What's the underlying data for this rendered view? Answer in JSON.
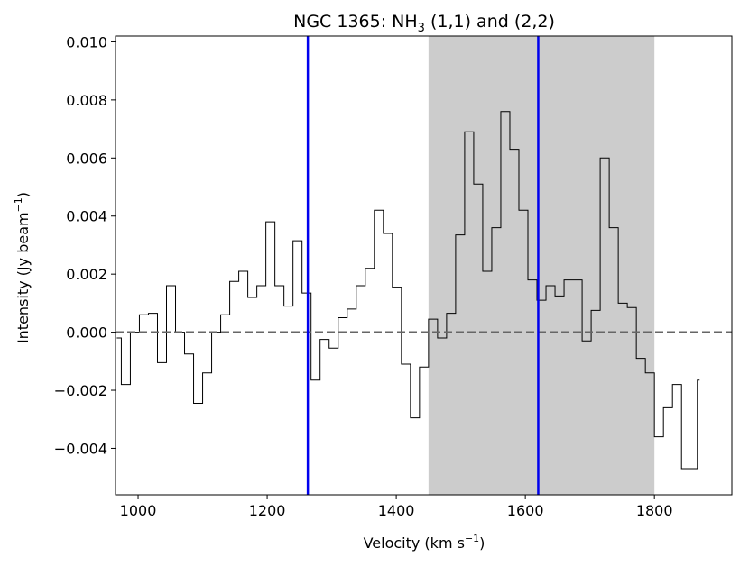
{
  "chart_data": {
    "type": "line",
    "title": "NGC 1365: NH",
    "title_sub": "3",
    "title_rest": " (1,1) and (2,2)",
    "xlabel": "Velocity (km s",
    "xlabel_sup": "−1",
    "xlabel_end": ")",
    "ylabel": "Intensity (Jy beam",
    "ylabel_sup": "−1",
    "ylabel_end": ")",
    "xlim": [
      965,
      1920
    ],
    "ylim": [
      -0.0056,
      0.0102
    ],
    "xticks": [
      {
        "value": 1000,
        "label": "1000"
      },
      {
        "value": 1200,
        "label": "1200"
      },
      {
        "value": 1400,
        "label": "1400"
      },
      {
        "value": 1600,
        "label": "1600"
      },
      {
        "value": 1800,
        "label": "1800"
      }
    ],
    "yticks": [
      {
        "value": -0.004,
        "label": "−0.004"
      },
      {
        "value": -0.002,
        "label": "−0.002"
      },
      {
        "value": 0.0,
        "label": "0.000"
      },
      {
        "value": 0.002,
        "label": "0.002"
      },
      {
        "value": 0.004,
        "label": "0.004"
      },
      {
        "value": 0.006,
        "label": "0.006"
      },
      {
        "value": 0.008,
        "label": "0.008"
      },
      {
        "value": 0.01,
        "label": "0.010"
      }
    ],
    "series": [
      {
        "style": "steps-mid",
        "color": "#000000",
        "points": [
          [
            967,
            -0.0002
          ],
          [
            981,
            -0.0018
          ],
          [
            995,
            0.0
          ],
          [
            1009,
            0.0006
          ],
          [
            1023,
            0.00065
          ],
          [
            1037,
            -0.00105
          ],
          [
            1051,
            0.0016
          ],
          [
            1065,
            0.0
          ],
          [
            1079,
            -0.00075
          ],
          [
            1093,
            -0.00245
          ],
          [
            1107,
            -0.0014
          ],
          [
            1121,
            0.0
          ],
          [
            1135,
            0.0006
          ],
          [
            1149,
            0.00175
          ],
          [
            1163,
            0.0021
          ],
          [
            1177,
            0.0012
          ],
          [
            1191,
            0.0016
          ],
          [
            1205,
            0.0038
          ],
          [
            1219,
            0.0016
          ],
          [
            1233,
            0.0009
          ],
          [
            1247,
            0.00315
          ],
          [
            1261,
            0.00135
          ],
          [
            1275,
            -0.00165
          ],
          [
            1289,
            -0.00025
          ],
          [
            1303,
            -0.00055
          ],
          [
            1317,
            0.0005
          ],
          [
            1331,
            0.0008
          ],
          [
            1345,
            0.0016
          ],
          [
            1359,
            0.0022
          ],
          [
            1373,
            0.0042
          ],
          [
            1387,
            0.0034
          ],
          [
            1401,
            0.00155
          ],
          [
            1415,
            -0.0011
          ],
          [
            1429,
            -0.00295
          ],
          [
            1443,
            -0.0012
          ],
          [
            1457,
            0.00045
          ],
          [
            1471,
            -0.0002
          ],
          [
            1485,
            0.00065
          ],
          [
            1499,
            0.00335
          ],
          [
            1513,
            0.0069
          ],
          [
            1527,
            0.0051
          ],
          [
            1541,
            0.0021
          ],
          [
            1555,
            0.0036
          ],
          [
            1569,
            0.0076
          ],
          [
            1583,
            0.0063
          ],
          [
            1597,
            0.0042
          ],
          [
            1611,
            0.0018
          ],
          [
            1625,
            0.0011
          ],
          [
            1639,
            0.0016
          ],
          [
            1653,
            0.00125
          ],
          [
            1667,
            0.0018
          ],
          [
            1681,
            0.0018
          ],
          [
            1695,
            -0.0003
          ],
          [
            1709,
            0.00075
          ],
          [
            1723,
            0.006
          ],
          [
            1737,
            0.0036
          ],
          [
            1751,
            0.001
          ],
          [
            1765,
            0.00085
          ],
          [
            1779,
            -0.0009
          ],
          [
            1793,
            -0.0014
          ],
          [
            1807,
            -0.0036
          ],
          [
            1821,
            -0.0026
          ],
          [
            1835,
            -0.0018
          ],
          [
            1849,
            -0.0047
          ],
          [
            1863,
            -0.0047
          ],
          [
            1870,
            -0.00165
          ]
        ]
      }
    ],
    "vlines": [
      {
        "x": 1263,
        "color": "#0000ee"
      },
      {
        "x": 1620,
        "color": "#0000ee"
      }
    ],
    "hline": {
      "y": 0.0,
      "color": "#666666",
      "style": "dashed"
    },
    "shaded_span": {
      "x0": 1450,
      "x1": 1800,
      "color": "#cccccc"
    },
    "grid": false,
    "legend": "none"
  }
}
